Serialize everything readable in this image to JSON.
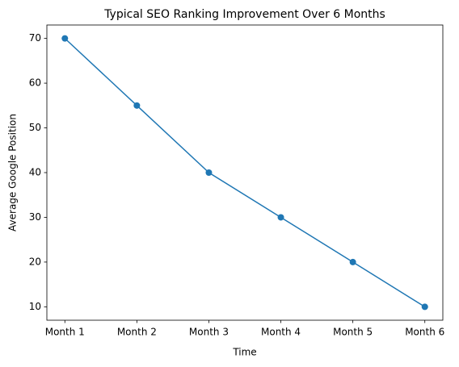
{
  "chart_data": {
    "type": "line",
    "title": "Typical SEO Ranking Improvement Over 6 Months",
    "x_label": "Time",
    "y_label": "Average Google Position",
    "categories": [
      "Month 1",
      "Month 2",
      "Month 3",
      "Month 4",
      "Month 5",
      "Month 6"
    ],
    "values": [
      70,
      55,
      40,
      30,
      20,
      10
    ],
    "color": "#1f77b4",
    "ylim": [
      7,
      73
    ],
    "yticks": [
      10,
      20,
      30,
      40,
      50,
      60,
      70
    ],
    "grid": false
  }
}
